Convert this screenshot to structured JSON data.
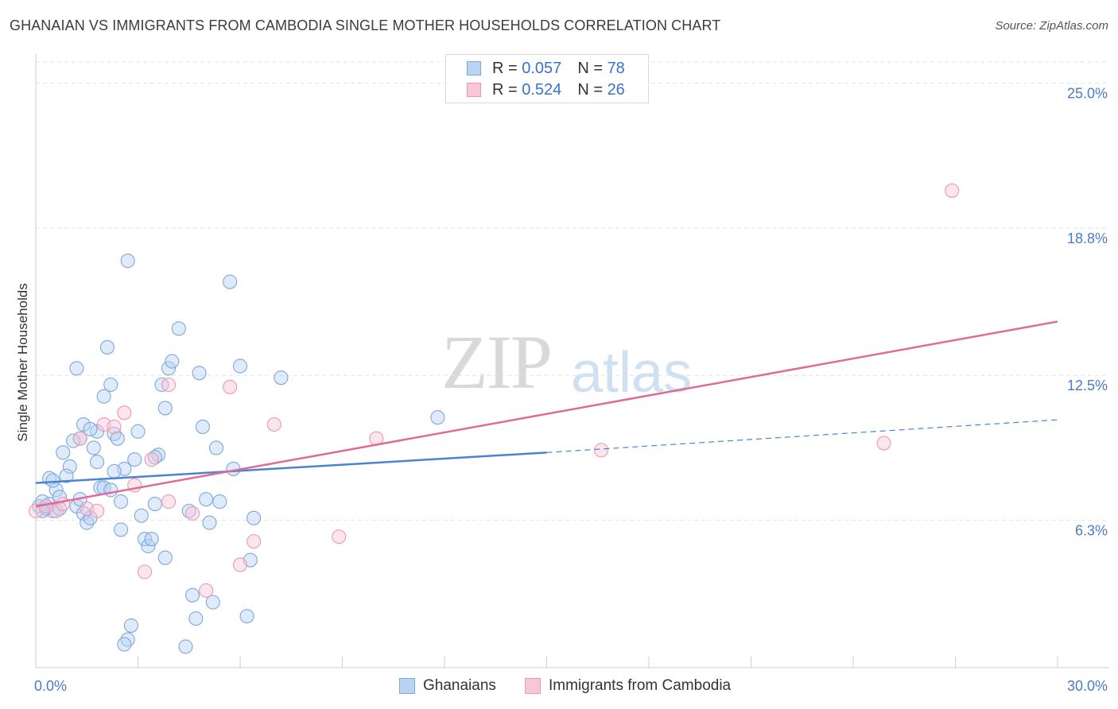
{
  "title": "GHANAIAN VS IMMIGRANTS FROM CAMBODIA SINGLE MOTHER HOUSEHOLDS CORRELATION CHART",
  "source": "Source: ZipAtlas.com",
  "watermark": {
    "zip": "ZIP",
    "atlas": "atlas"
  },
  "colors": {
    "blue": "#4a83d6",
    "blue_fill": "#b9d3f3",
    "pink": "#e06b96",
    "pink_fill": "#f8c6d6",
    "tick_text": "#4a7bc8"
  },
  "legend": {
    "rows": [
      {
        "r_label": "R =",
        "r_value": "0.057",
        "n_label": "N =",
        "n_value": "78"
      },
      {
        "r_label": "R =",
        "r_value": "0.524",
        "n_label": "N =",
        "n_value": "26"
      }
    ]
  },
  "bottom_legend": {
    "series1": "Ghanaians",
    "series2": "Immigrants from Cambodia"
  },
  "chart_data": {
    "type": "scatter",
    "title": "GHANAIAN VS IMMIGRANTS FROM CAMBODIA SINGLE MOTHER HOUSEHOLDS CORRELATION CHART",
    "xlabel": "",
    "ylabel": "Single Mother Households",
    "xlim": [
      0,
      30
    ],
    "ylim": [
      0,
      25.9
    ],
    "y_ticks": [
      6.3,
      12.5,
      18.8,
      25.0
    ],
    "y_tick_labels": [
      "6.3%",
      "12.5%",
      "18.8%",
      "25.0%"
    ],
    "x_tick_labels": [
      "0.0%",
      "30.0%"
    ],
    "grid": "horizontal dashed",
    "legend_position": "top-center",
    "series": [
      {
        "name": "Ghanaians",
        "r": 0.057,
        "n": 78,
        "trend": {
          "x0": 0,
          "y0": 7.9,
          "x1": 15,
          "y1": 9.2,
          "dashed_to_x": 30,
          "dashed_to_y": 10.6
        },
        "points": [
          [
            0.1,
            6.9
          ],
          [
            0.2,
            7.1
          ],
          [
            0.3,
            6.8
          ],
          [
            0.4,
            7.0
          ],
          [
            0.5,
            6.7
          ],
          [
            0.4,
            8.1
          ],
          [
            0.6,
            7.6
          ],
          [
            0.7,
            7.3
          ],
          [
            0.8,
            9.2
          ],
          [
            1.0,
            8.6
          ],
          [
            0.9,
            8.2
          ],
          [
            1.2,
            6.9
          ],
          [
            1.3,
            9.8
          ],
          [
            1.2,
            12.8
          ],
          [
            1.4,
            10.4
          ],
          [
            1.4,
            6.6
          ],
          [
            1.5,
            6.2
          ],
          [
            1.6,
            6.4
          ],
          [
            1.7,
            9.4
          ],
          [
            1.8,
            8.8
          ],
          [
            1.9,
            7.7
          ],
          [
            2.0,
            7.7
          ],
          [
            2.2,
            7.6
          ],
          [
            2.0,
            11.6
          ],
          [
            2.1,
            13.7
          ],
          [
            2.2,
            12.1
          ],
          [
            2.3,
            10.0
          ],
          [
            2.4,
            9.8
          ],
          [
            2.5,
            7.1
          ],
          [
            2.5,
            5.9
          ],
          [
            2.6,
            8.5
          ],
          [
            2.7,
            17.4
          ],
          [
            2.8,
            1.8
          ],
          [
            2.7,
            1.2
          ],
          [
            2.6,
            1.0
          ],
          [
            3.0,
            10.1
          ],
          [
            3.1,
            6.5
          ],
          [
            3.2,
            5.5
          ],
          [
            3.3,
            5.2
          ],
          [
            3.4,
            5.5
          ],
          [
            3.5,
            7.0
          ],
          [
            3.6,
            9.1
          ],
          [
            3.7,
            12.1
          ],
          [
            3.8,
            11.1
          ],
          [
            3.9,
            12.8
          ],
          [
            3.8,
            4.7
          ],
          [
            4.0,
            13.1
          ],
          [
            4.2,
            14.5
          ],
          [
            4.4,
            0.9
          ],
          [
            4.5,
            6.7
          ],
          [
            4.6,
            3.1
          ],
          [
            4.7,
            2.1
          ],
          [
            4.8,
            12.6
          ],
          [
            4.9,
            10.3
          ],
          [
            5.0,
            7.2
          ],
          [
            5.1,
            6.2
          ],
          [
            5.2,
            2.8
          ],
          [
            5.3,
            9.4
          ],
          [
            5.4,
            7.1
          ],
          [
            5.7,
            16.5
          ],
          [
            5.8,
            8.5
          ],
          [
            6.0,
            12.9
          ],
          [
            6.2,
            2.2
          ],
          [
            6.3,
            4.6
          ],
          [
            6.4,
            6.4
          ],
          [
            7.2,
            12.4
          ],
          [
            11.8,
            10.7
          ],
          [
            0.3,
            6.9
          ],
          [
            0.5,
            8.0
          ],
          [
            1.1,
            9.7
          ],
          [
            1.8,
            10.1
          ],
          [
            1.3,
            7.2
          ],
          [
            2.9,
            8.9
          ],
          [
            3.5,
            9.0
          ],
          [
            0.7,
            6.8
          ],
          [
            1.6,
            10.2
          ],
          [
            2.3,
            8.4
          ],
          [
            0.2,
            6.7
          ]
        ]
      },
      {
        "name": "Immigrants from Cambodia",
        "r": 0.524,
        "n": 26,
        "trend": {
          "x0": 0,
          "y0": 6.9,
          "x1": 30,
          "y1": 14.8
        },
        "points": [
          [
            0.0,
            6.7
          ],
          [
            0.3,
            6.9
          ],
          [
            0.6,
            6.7
          ],
          [
            0.8,
            7.0
          ],
          [
            1.5,
            6.8
          ],
          [
            1.8,
            6.7
          ],
          [
            1.3,
            9.8
          ],
          [
            2.0,
            10.4
          ],
          [
            2.3,
            10.3
          ],
          [
            2.6,
            10.9
          ],
          [
            2.9,
            7.8
          ],
          [
            3.2,
            4.1
          ],
          [
            3.4,
            8.9
          ],
          [
            3.9,
            7.1
          ],
          [
            3.9,
            12.1
          ],
          [
            4.6,
            6.6
          ],
          [
            5.0,
            3.3
          ],
          [
            5.7,
            12.0
          ],
          [
            6.0,
            4.4
          ],
          [
            6.4,
            5.4
          ],
          [
            7.0,
            10.4
          ],
          [
            8.9,
            5.6
          ],
          [
            10.0,
            9.8
          ],
          [
            16.6,
            9.3
          ],
          [
            24.9,
            9.6
          ],
          [
            26.9,
            20.4
          ]
        ]
      }
    ]
  }
}
